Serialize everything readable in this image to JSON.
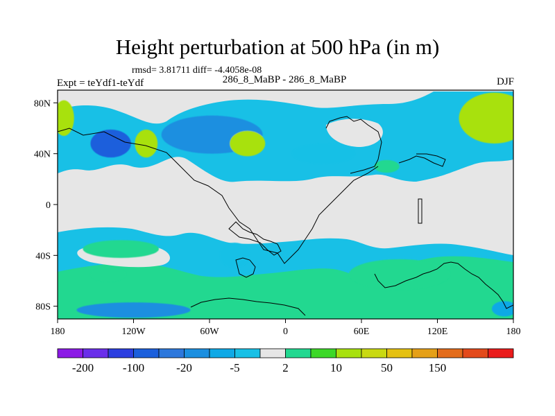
{
  "chart_data": {
    "type": "heatmap",
    "title": "Height perturbation at 500 hPa (in m)",
    "stats_text": "rmsd= 3.81711 diff= -4.4058e-08",
    "subtitle": "286_8_MaBP - 286_8_MaBP",
    "left_label": "Expt = teYdf1-teYdf",
    "right_label": "DJF",
    "x_range": [
      -180,
      180
    ],
    "y_range": [
      -90,
      90
    ],
    "x_ticks": [
      {
        "value": -180,
        "label": "180"
      },
      {
        "value": -120,
        "label": "120W"
      },
      {
        "value": -60,
        "label": "60W"
      },
      {
        "value": 0,
        "label": "0"
      },
      {
        "value": 60,
        "label": "60E"
      },
      {
        "value": 120,
        "label": "120E"
      },
      {
        "value": 180,
        "label": "180"
      }
    ],
    "y_ticks": [
      {
        "value": 80,
        "label": "80N"
      },
      {
        "value": 40,
        "label": "40N"
      },
      {
        "value": 0,
        "label": "0"
      },
      {
        "value": -40,
        "label": "40S"
      },
      {
        "value": -80,
        "label": "80S"
      }
    ],
    "colorbar": {
      "colors": [
        "#8c1ae6",
        "#6a2eea",
        "#2c3fe0",
        "#1b5fdc",
        "#2d78dc",
        "#1b8fe0",
        "#0fa9e6",
        "#18c0e6",
        "#e6e6e6",
        "#22d890",
        "#3cd828",
        "#a8e10f",
        "#c9d912",
        "#e5c112",
        "#e5a018",
        "#e36c1b",
        "#e34a1b",
        "#ea1c1c"
      ],
      "labels": [
        {
          "after_box": 1,
          "text": "-200"
        },
        {
          "after_box": 3,
          "text": "-100"
        },
        {
          "after_box": 5,
          "text": "-20"
        },
        {
          "after_box": 7,
          "text": "-5"
        },
        {
          "after_box": 9,
          "text": "2"
        },
        {
          "after_box": 11,
          "text": "10"
        },
        {
          "after_box": 13,
          "text": "50"
        },
        {
          "after_box": 15,
          "text": "150"
        }
      ]
    },
    "anomalies": [
      {
        "lon": 165,
        "lat": 68,
        "rx": 28,
        "ry": 20,
        "level": "a1"
      },
      {
        "lon": -175,
        "lat": 68,
        "rx": 8,
        "ry": 14,
        "level": "a1"
      },
      {
        "lon": -138,
        "lat": 48,
        "rx": 16,
        "ry": 11,
        "level": "n5"
      },
      {
        "lon": -110,
        "lat": 48,
        "rx": 9,
        "ry": 11,
        "level": "a1"
      },
      {
        "lon": -58,
        "lat": 55,
        "rx": 40,
        "ry": 15,
        "level": "n4"
      },
      {
        "lon": -30,
        "lat": 48,
        "rx": 14,
        "ry": 10,
        "level": "a1"
      },
      {
        "lon": 30,
        "lat": 40,
        "rx": 25,
        "ry": 8,
        "level": "n2"
      },
      {
        "lon": 80,
        "lat": 30,
        "rx": 10,
        "ry": 5,
        "level": "a0"
      },
      {
        "lon": -130,
        "lat": -35,
        "rx": 30,
        "ry": 7,
        "level": "a0"
      },
      {
        "lon": -40,
        "lat": -40,
        "rx": 12,
        "ry": 10,
        "level": "n2"
      },
      {
        "lon": -140,
        "lat": -55,
        "rx": 14,
        "ry": 6,
        "level": "a0"
      },
      {
        "lon": -120,
        "lat": -83,
        "rx": 45,
        "ry": 6,
        "level": "n4"
      },
      {
        "lon": 90,
        "lat": -55,
        "rx": 40,
        "ry": 12,
        "level": "a0"
      },
      {
        "lon": 173,
        "lat": -82,
        "rx": 10,
        "ry": 6,
        "level": "n3"
      }
    ]
  }
}
